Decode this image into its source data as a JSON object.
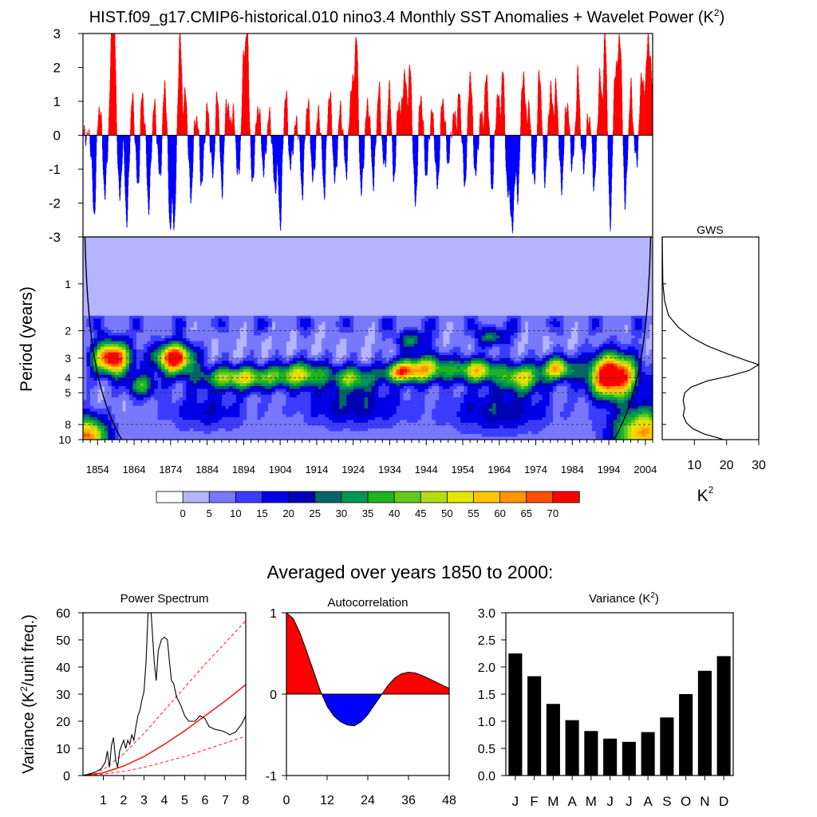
{
  "title": "HIST.f09_g17.CMIP6-historical.010 nino3.4 Monthly SST Anomalies + Wavelet Power (K",
  "title_sup": "2",
  "title_close": ")",
  "subtitle": "Averaged over years 1850 to 2000:",
  "colors": {
    "positive": "#ff0000",
    "negative": "#0000ff",
    "wavelet_bg": "#b4b4ff",
    "reference_line": "#ff0000"
  },
  "chart_data": [
    {
      "type": "bar",
      "name": "anomaly-timeseries",
      "ylim": [
        -3,
        3
      ],
      "yticks": [
        "-3",
        "-2",
        "-1",
        "0",
        "1",
        "2",
        "3"
      ],
      "xlim": [
        1850,
        2006
      ],
      "anomaly_events": [
        [
          1853.0,
          -2.4
        ],
        [
          1854.5,
          0.9
        ],
        [
          1856.0,
          -1.8
        ],
        [
          1857.8,
          2.3
        ],
        [
          1858.5,
          3.0
        ],
        [
          1860.0,
          -1.9
        ],
        [
          1862.0,
          -2.6
        ],
        [
          1863.5,
          1.1
        ],
        [
          1865.0,
          -1.6
        ],
        [
          1866.2,
          1.3
        ],
        [
          1868.0,
          -2.2
        ],
        [
          1869.5,
          0.9
        ],
        [
          1871.0,
          -1.3
        ],
        [
          1872.4,
          1.6
        ],
        [
          1873.8,
          -2.6
        ],
        [
          1875.0,
          -2.5
        ],
        [
          1876.5,
          3.0
        ],
        [
          1878.0,
          1.2
        ],
        [
          1879.5,
          -1.9
        ],
        [
          1881.0,
          0.6
        ],
        [
          1882.5,
          -1.5
        ],
        [
          1884.0,
          0.8
        ],
        [
          1885.5,
          -1.2
        ],
        [
          1886.8,
          1.3
        ],
        [
          1888.0,
          -1.7
        ],
        [
          1889.4,
          1.1
        ],
        [
          1891.0,
          0.7
        ],
        [
          1892.5,
          -1.3
        ],
        [
          1894.0,
          2.2
        ],
        [
          1895.0,
          2.8
        ],
        [
          1896.3,
          -1.5
        ],
        [
          1898.0,
          0.9
        ],
        [
          1899.5,
          -1.1
        ],
        [
          1901.0,
          0.6
        ],
        [
          1902.5,
          -1.6
        ],
        [
          1904.0,
          -2.6
        ],
        [
          1905.5,
          1.3
        ],
        [
          1906.8,
          -1.0
        ],
        [
          1908.5,
          0.4
        ],
        [
          1910.0,
          -1.7
        ],
        [
          1911.5,
          1.0
        ],
        [
          1913.0,
          -1.4
        ],
        [
          1914.5,
          0.7
        ],
        [
          1916.0,
          -1.7
        ],
        [
          1917.5,
          1.3
        ],
        [
          1919.0,
          -1.4
        ],
        [
          1920.5,
          0.8
        ],
        [
          1922.0,
          -1.1
        ],
        [
          1923.5,
          1.5
        ],
        [
          1924.8,
          3.0
        ],
        [
          1926.2,
          -1.8
        ],
        [
          1928.0,
          1.0
        ],
        [
          1929.5,
          -1.4
        ],
        [
          1931.0,
          1.4
        ],
        [
          1932.5,
          -1.0
        ],
        [
          1934.0,
          1.6
        ],
        [
          1935.0,
          -1.5
        ],
        [
          1936.5,
          1.0
        ],
        [
          1938.0,
          1.9
        ],
        [
          1939.5,
          2.0
        ],
        [
          1941.0,
          -2.1
        ],
        [
          1942.5,
          1.2
        ],
        [
          1944.0,
          -1.2
        ],
        [
          1945.5,
          0.7
        ],
        [
          1947.0,
          -1.6
        ],
        [
          1948.5,
          1.1
        ],
        [
          1950.0,
          -0.8
        ],
        [
          1951.5,
          0.6
        ],
        [
          1953.0,
          1.2
        ],
        [
          1954.5,
          -1.5
        ],
        [
          1956.0,
          1.9
        ],
        [
          1957.5,
          -1.2
        ],
        [
          1959.0,
          0.6
        ],
        [
          1960.5,
          1.8
        ],
        [
          1962.0,
          -1.6
        ],
        [
          1963.5,
          1.2
        ],
        [
          1965.0,
          1.9
        ],
        [
          1966.2,
          -1.8
        ],
        [
          1967.5,
          -2.9
        ],
        [
          1969.0,
          -1.8
        ],
        [
          1970.5,
          1.9
        ],
        [
          1972.0,
          0.8
        ],
        [
          1973.5,
          -1.5
        ],
        [
          1975.0,
          1.9
        ],
        [
          1976.5,
          -1.3
        ],
        [
          1978.0,
          1.4
        ],
        [
          1979.5,
          1.4
        ],
        [
          1981.0,
          -1.6
        ],
        [
          1982.5,
          1.0
        ],
        [
          1984.0,
          -0.9
        ],
        [
          1985.5,
          1.8
        ],
        [
          1987.0,
          -1.0
        ],
        [
          1988.5,
          0.6
        ],
        [
          1990.0,
          -1.5
        ],
        [
          1991.5,
          1.7
        ],
        [
          1993.0,
          3.0
        ],
        [
          1994.3,
          -2.7
        ],
        [
          1995.8,
          2.0
        ],
        [
          1997.0,
          3.0
        ],
        [
          1998.5,
          -2.0
        ],
        [
          2000.0,
          1.4
        ],
        [
          2001.5,
          -0.8
        ],
        [
          2003.0,
          1.9
        ],
        [
          2004.5,
          2.6
        ],
        [
          2005.5,
          2.0
        ]
      ]
    },
    {
      "type": "heatmap",
      "name": "wavelet-power",
      "ylabel": "Period (years)",
      "yticks": [
        "1",
        "2",
        "3",
        "4",
        "5",
        "8",
        "10"
      ],
      "ytick_values": [
        1,
        2,
        3,
        4,
        5,
        8,
        10
      ],
      "ylim": [
        0.5,
        10
      ],
      "xlim": [
        1850,
        2006
      ],
      "xticks": [
        "1854",
        "1864",
        "1874",
        "1884",
        "1894",
        "1904",
        "1914",
        "1924",
        "1934",
        "1944",
        "1954",
        "1964",
        "1974",
        "1984",
        "1994",
        "2004"
      ],
      "xtick_values": [
        1854,
        1864,
        1874,
        1884,
        1894,
        1904,
        1914,
        1924,
        1934,
        1944,
        1954,
        1964,
        1974,
        1984,
        1994,
        2004
      ],
      "power_blobs": [
        {
          "year": 1858,
          "period": 3.0,
          "peak": 75,
          "sx": 3.5,
          "sy": 0.17
        },
        {
          "year": 1875,
          "period": 3.0,
          "peak": 75,
          "sx": 3.5,
          "sy": 0.15
        },
        {
          "year": 1995,
          "period": 3.9,
          "peak": 85,
          "sx": 4.5,
          "sy": 0.22
        },
        {
          "year": 1851,
          "period": 9.5,
          "peak": 60,
          "sx": 4.0,
          "sy": 0.2
        },
        {
          "year": 2004,
          "period": 9.0,
          "peak": 55,
          "sx": 6.0,
          "sy": 0.25
        },
        {
          "year": 1893,
          "period": 4.0,
          "peak": 45,
          "sx": 8.0,
          "sy": 0.12
        },
        {
          "year": 1910,
          "period": 3.8,
          "peak": 40,
          "sx": 5.0,
          "sy": 0.13
        },
        {
          "year": 1924,
          "period": 4.0,
          "peak": 35,
          "sx": 4.0,
          "sy": 0.12
        },
        {
          "year": 1937,
          "period": 3.7,
          "peak": 45,
          "sx": 3.5,
          "sy": 0.1
        },
        {
          "year": 1944,
          "period": 3.5,
          "peak": 45,
          "sx": 5.0,
          "sy": 0.14
        },
        {
          "year": 1958,
          "period": 3.6,
          "peak": 48,
          "sx": 4.0,
          "sy": 0.12
        },
        {
          "year": 1970,
          "period": 4.0,
          "peak": 45,
          "sx": 4.0,
          "sy": 0.14
        },
        {
          "year": 1980,
          "period": 3.5,
          "peak": 50,
          "sx": 3.0,
          "sy": 0.12
        },
        {
          "year": 1962,
          "period": 2.2,
          "peak": 25,
          "sx": 3.0,
          "sy": 0.1
        },
        {
          "year": 1940,
          "period": 2.3,
          "peak": 25,
          "sx": 3.0,
          "sy": 0.1
        },
        {
          "year": 1866,
          "period": 4.5,
          "peak": 30,
          "sx": 3.0,
          "sy": 0.12
        },
        {
          "year": 1924,
          "period": 6.0,
          "peak": 18,
          "sx": 10.0,
          "sy": 0.22
        },
        {
          "year": 1964,
          "period": 6.5,
          "peak": 18,
          "sx": 10.0,
          "sy": 0.22
        },
        {
          "year": 1884,
          "period": 6.5,
          "peak": 14,
          "sx": 8.0,
          "sy": 0.2
        }
      ],
      "lightest_zone_periods": [
        0.5,
        1.6
      ],
      "dashed_periods": [
        2,
        3,
        4,
        5,
        8
      ]
    },
    {
      "type": "line",
      "name": "global-wavelet-spectrum",
      "title": "GWS",
      "xlabel": "K",
      "xlabel_sup": "2",
      "xticks": [
        "10",
        "20",
        "30"
      ],
      "xtick_values": [
        10,
        20,
        30
      ],
      "xlim": [
        0,
        30
      ],
      "points": [
        [
          0.0,
          0.5
        ],
        [
          0.2,
          1.0
        ],
        [
          0.8,
          1.3
        ],
        [
          2.0,
          1.6
        ],
        [
          5.0,
          1.9
        ],
        [
          9.0,
          2.2
        ],
        [
          14.0,
          2.5
        ],
        [
          20.0,
          2.8
        ],
        [
          26.0,
          3.1
        ],
        [
          30.0,
          3.3
        ],
        [
          27.0,
          3.6
        ],
        [
          21.0,
          3.9
        ],
        [
          14.0,
          4.2
        ],
        [
          9.0,
          4.6
        ],
        [
          7.0,
          5.0
        ],
        [
          6.5,
          5.6
        ],
        [
          7.0,
          6.3
        ],
        [
          6.5,
          7.0
        ],
        [
          7.5,
          7.8
        ],
        [
          9.5,
          8.5
        ],
        [
          13.0,
          9.2
        ],
        [
          17.0,
          9.7
        ],
        [
          19.0,
          10.0
        ]
      ]
    },
    {
      "type": "line",
      "name": "power-spectrum",
      "title": "Power Spectrum",
      "ylabel": "Variance (K",
      "ylabel_sup": "2",
      "ylabel_close": "/unit freq.)",
      "xlim": [
        0,
        8
      ],
      "ylim": [
        0,
        60
      ],
      "xticks": [
        "1",
        "2",
        "3",
        "4",
        "5",
        "6",
        "7",
        "8"
      ],
      "yticks": [
        "0",
        "10",
        "20",
        "30",
        "40",
        "50",
        "60"
      ],
      "spectrum": [
        [
          0.0,
          0.0
        ],
        [
          0.3,
          0.5
        ],
        [
          0.6,
          1.2
        ],
        [
          0.9,
          2.5
        ],
        [
          1.1,
          5.0
        ],
        [
          1.2,
          9.0
        ],
        [
          1.3,
          3.0
        ],
        [
          1.4,
          11.0
        ],
        [
          1.5,
          14.0
        ],
        [
          1.6,
          6.0
        ],
        [
          1.7,
          3.0
        ],
        [
          1.8,
          9.0
        ],
        [
          1.9,
          11.0
        ],
        [
          2.0,
          13.0
        ],
        [
          2.1,
          10.0
        ],
        [
          2.2,
          13.0
        ],
        [
          2.3,
          11.5
        ],
        [
          2.4,
          15.0
        ],
        [
          2.5,
          13.0
        ],
        [
          2.6,
          18.0
        ],
        [
          2.7,
          22.0
        ],
        [
          2.8,
          24.0
        ],
        [
          2.9,
          28.0
        ],
        [
          3.0,
          31.0
        ],
        [
          3.1,
          42.0
        ],
        [
          3.2,
          60.0
        ],
        [
          3.35,
          60.0
        ],
        [
          3.5,
          42.0
        ],
        [
          3.6,
          35.0
        ],
        [
          3.7,
          46.0
        ],
        [
          3.85,
          50.0
        ],
        [
          4.0,
          51.0
        ],
        [
          4.15,
          50.0
        ],
        [
          4.25,
          42.0
        ],
        [
          4.35,
          35.0
        ],
        [
          4.45,
          34.0
        ],
        [
          4.6,
          29.0
        ],
        [
          4.8,
          26.0
        ],
        [
          5.0,
          22.0
        ],
        [
          5.2,
          20.0
        ],
        [
          5.5,
          20.0
        ],
        [
          5.75,
          22.0
        ],
        [
          6.0,
          21.0
        ],
        [
          6.2,
          18.0
        ],
        [
          6.5,
          17.0
        ],
        [
          6.8,
          16.5
        ],
        [
          7.0,
          16.0
        ],
        [
          7.2,
          15.0
        ],
        [
          7.5,
          16.0
        ],
        [
          7.8,
          19.0
        ],
        [
          8.0,
          22.0
        ]
      ],
      "red_noise": [
        [
          0,
          0.0
        ],
        [
          1,
          1.0
        ],
        [
          2,
          3.5
        ],
        [
          3,
          7.0
        ],
        [
          4,
          11.5
        ],
        [
          5,
          16.5
        ],
        [
          6,
          22.0
        ],
        [
          7,
          27.5
        ],
        [
          8,
          33.5
        ]
      ],
      "red_noise_upper": [
        [
          0,
          0.0
        ],
        [
          1,
          2.2
        ],
        [
          2,
          8.0
        ],
        [
          3,
          15.5
        ],
        [
          4,
          24.0
        ],
        [
          5,
          32.5
        ],
        [
          6,
          41.0
        ],
        [
          7,
          49.0
        ],
        [
          8,
          57.0
        ]
      ],
      "red_noise_lower": [
        [
          0,
          0.0
        ],
        [
          1,
          0.5
        ],
        [
          2,
          1.5
        ],
        [
          3,
          3.0
        ],
        [
          4,
          5.0
        ],
        [
          5,
          7.0
        ],
        [
          6,
          9.5
        ],
        [
          7,
          12.0
        ],
        [
          8,
          14.5
        ]
      ]
    },
    {
      "type": "area",
      "name": "autocorrelation",
      "title": "Autocorrelation",
      "xlim": [
        0,
        48
      ],
      "ylim": [
        -1,
        1
      ],
      "xticks": [
        "0",
        "12",
        "24",
        "36",
        "48"
      ],
      "yticks": [
        "-1",
        "0",
        "1"
      ],
      "points": [
        [
          0,
          1.0
        ],
        [
          2,
          0.93
        ],
        [
          4,
          0.75
        ],
        [
          6,
          0.52
        ],
        [
          8,
          0.28
        ],
        [
          10,
          0.04
        ],
        [
          12,
          -0.15
        ],
        [
          14,
          -0.27
        ],
        [
          16,
          -0.34
        ],
        [
          18,
          -0.38
        ],
        [
          20,
          -0.39
        ],
        [
          22,
          -0.34
        ],
        [
          24,
          -0.25
        ],
        [
          26,
          -0.13
        ],
        [
          28,
          -0.01
        ],
        [
          30,
          0.11
        ],
        [
          32,
          0.2
        ],
        [
          34,
          0.25
        ],
        [
          36,
          0.27
        ],
        [
          38,
          0.26
        ],
        [
          40,
          0.23
        ],
        [
          42,
          0.19
        ],
        [
          44,
          0.15
        ],
        [
          46,
          0.11
        ],
        [
          48,
          0.07
        ]
      ]
    },
    {
      "type": "bar",
      "name": "monthly-variance",
      "title": "Variance (K",
      "title_sup": "2",
      "title_close": ")",
      "categories": [
        "J",
        "F",
        "M",
        "A",
        "M",
        "J",
        "J",
        "A",
        "S",
        "O",
        "N",
        "D"
      ],
      "values": [
        2.25,
        1.83,
        1.32,
        1.02,
        0.82,
        0.68,
        0.62,
        0.8,
        1.07,
        1.5,
        1.93,
        2.2
      ],
      "ylim": [
        0.0,
        3.0
      ],
      "yticks": [
        "0.0",
        "0.5",
        "1.0",
        "1.5",
        "2.0",
        "2.5",
        "3.0"
      ]
    }
  ],
  "colorbar": {
    "labels": [
      "0",
      "5",
      "10",
      "15",
      "20",
      "25",
      "30",
      "35",
      "40",
      "45",
      "50",
      "55",
      "60",
      "65",
      "70"
    ],
    "colors": [
      "#ffffff",
      "#b4b4ff",
      "#7878ff",
      "#3c3cff",
      "#0000e6",
      "#0000b4",
      "#006666",
      "#00965a",
      "#1eb41e",
      "#64c81e",
      "#b4dc14",
      "#e6e600",
      "#ffc800",
      "#ff9600",
      "#ff5000",
      "#ff0000"
    ]
  }
}
